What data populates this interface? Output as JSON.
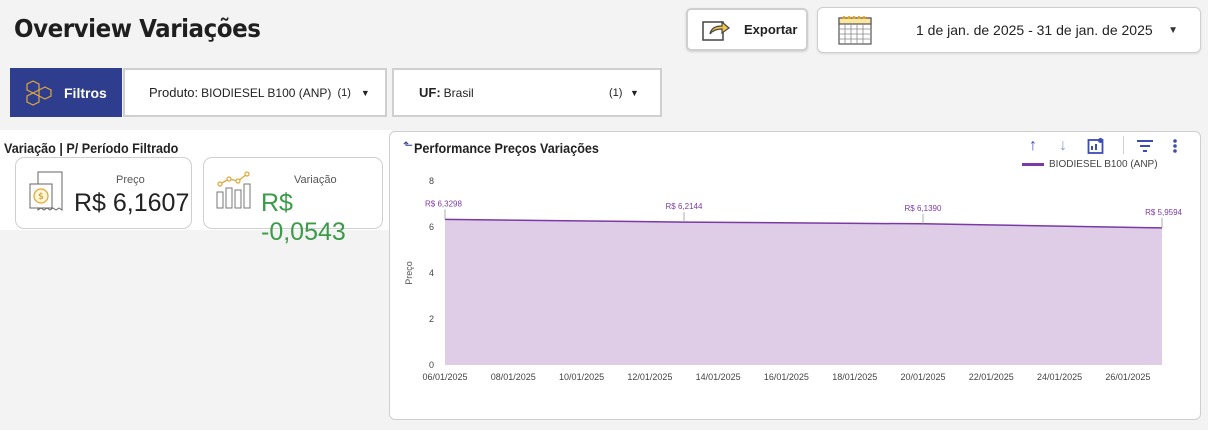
{
  "header": {
    "title": "Overview Variações",
    "export_label": "Exportar",
    "date_range": "1 de jan. de 2025 - 31 de jan. de 2025"
  },
  "filters": {
    "button_label": "Filtros",
    "produto_key": "Produto:",
    "produto_value": "BIODIESEL B100 (ANP)",
    "produto_count": "(1)",
    "uf_key": "UF:",
    "uf_value": "Brasil",
    "uf_count": "(1)"
  },
  "left": {
    "title": "Variação | P/ Período Filtrado",
    "preco_label": "Preço",
    "preco_value": "R$ 6,1607",
    "variacao_label": "Variação",
    "variacao_value": "R$ -0,0543"
  },
  "chart_card": {
    "title": "Performance Preços Variações",
    "legend": "BIODIESEL B100 (ANP)"
  },
  "chart_data": {
    "type": "area",
    "title": "Performance Preços Variações",
    "ylabel": "Preço",
    "xlabel": "",
    "ylim": [
      0,
      8
    ],
    "yticks": [
      0,
      2,
      4,
      6,
      8
    ],
    "xticks": [
      "06/01/2025",
      "08/01/2025",
      "10/01/2025",
      "12/01/2025",
      "14/01/2025",
      "16/01/2025",
      "18/01/2025",
      "20/01/2025",
      "22/01/2025",
      "24/01/2025",
      "26/01/2025"
    ],
    "series": [
      {
        "name": "BIODIESEL B100 (ANP)",
        "color": "#7a3aa5",
        "fill": "#dfcde7",
        "points": [
          {
            "x": "06/01/2025",
            "y": 6.3298,
            "label": "R$ 6,3298"
          },
          {
            "x": "13/01/2025",
            "y": 6.2144,
            "label": "R$ 6,2144"
          },
          {
            "x": "20/01/2025",
            "y": 6.139,
            "label": "R$ 6,1390"
          },
          {
            "x": "27/01/2025",
            "y": 5.9594,
            "label": "R$ 5,9594"
          }
        ]
      }
    ],
    "legend_position": "top-right"
  },
  "colors": {
    "brand": "#2f3d8e",
    "positive": "#3a9b48",
    "series": "#7a3aa5"
  }
}
